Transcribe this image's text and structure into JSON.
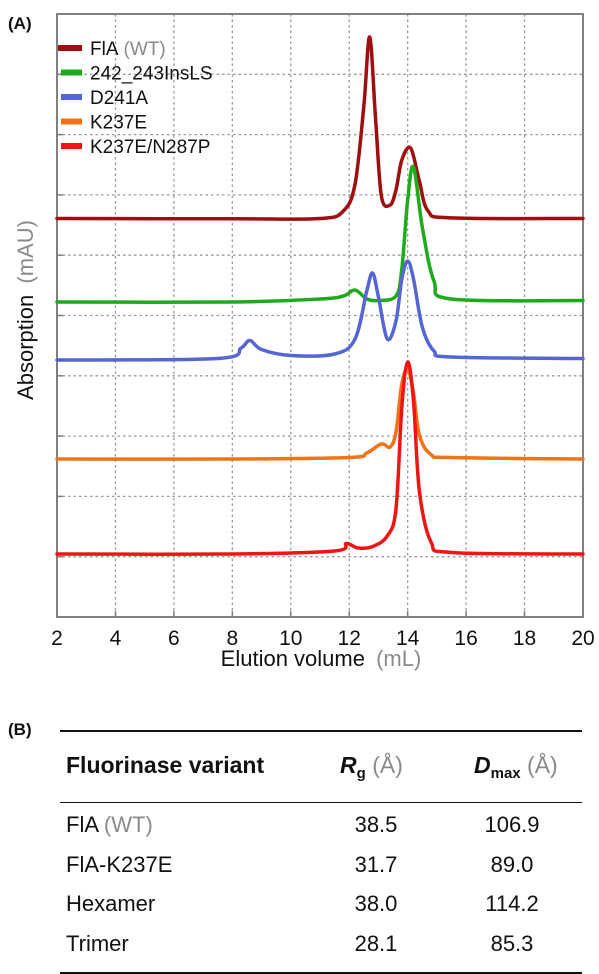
{
  "panel_a_label": "(A)",
  "panel_b_label": "(B)",
  "colors": {
    "FlA": "#a00f0f",
    "242_243InsLS": "#1cab1c",
    "D241A": "#5566d4",
    "K237E": "#f07319",
    "K237E/N287P": "#f01414",
    "axis": "#808080",
    "grid": "#9a9a9a",
    "unit_gray": "#8a8a8a"
  },
  "chart_data": {
    "type": "line",
    "xlabel": "Elution volume",
    "xlabel_unit": "(mL)",
    "ylabel": "Absorption",
    "ylabel_unit": "(mAU)",
    "xlim": [
      2,
      20
    ],
    "xticks": [
      "2",
      "4",
      "6",
      "8",
      "10",
      "12",
      "14",
      "16",
      "18",
      "20"
    ],
    "y_tick_labels": "none",
    "grid": "dotted",
    "legend_position": "top-left",
    "series": [
      {
        "name": "FlA",
        "name_suffix": "(WT)",
        "color": "#a00f0f",
        "x": [
          2,
          8,
          11,
          11.8,
          12.2,
          12.5,
          12.7,
          12.9,
          13.1,
          13.4,
          13.6,
          13.8,
          14.1,
          14.4,
          14.7,
          15.5,
          20
        ],
        "y": [
          0.25,
          0.24,
          0.25,
          0.5,
          1.4,
          4.0,
          6.3,
          3.6,
          1.0,
          0.7,
          1.2,
          2.2,
          2.6,
          1.5,
          0.5,
          0.27,
          0.25
        ]
      },
      {
        "name": "242_243InsLS",
        "color": "#1cab1c",
        "x": [
          2,
          8,
          11,
          11.8,
          12.2,
          12.6,
          13.0,
          13.6,
          13.8,
          14.0,
          14.2,
          14.5,
          14.9,
          15.5,
          20
        ],
        "y": [
          0.1,
          0.1,
          0.2,
          0.3,
          0.5,
          0.2,
          0.15,
          0.3,
          1.2,
          3.5,
          4.6,
          2.6,
          0.8,
          0.2,
          0.15
        ]
      },
      {
        "name": "D241A",
        "color": "#5566d4",
        "x": [
          2,
          7.5,
          8.3,
          8.6,
          9.0,
          10,
          11.5,
          12.2,
          12.6,
          12.8,
          13.0,
          13.3,
          13.6,
          13.8,
          14.0,
          14.2,
          14.5,
          14.9,
          15.5,
          20
        ],
        "y": [
          0.1,
          0.15,
          0.5,
          0.75,
          0.45,
          0.25,
          0.3,
          0.8,
          2.4,
          3.0,
          2.2,
          0.8,
          1.4,
          2.8,
          3.4,
          2.8,
          1.2,
          0.4,
          0.2,
          0.15
        ]
      },
      {
        "name": "K237E",
        "color": "#f07319",
        "x": [
          2,
          8,
          12,
          12.6,
          13.1,
          13.4,
          13.6,
          13.8,
          14.0,
          14.2,
          14.4,
          14.8,
          15.5,
          20
        ],
        "y": [
          0.1,
          0.1,
          0.15,
          0.3,
          0.6,
          0.5,
          1.0,
          2.6,
          3.1,
          2.3,
          0.9,
          0.25,
          0.15,
          0.1
        ]
      },
      {
        "name": "K237E/N287P",
        "color": "#f01414",
        "x": [
          2,
          8,
          11.5,
          11.9,
          12.3,
          12.8,
          13.3,
          13.6,
          13.8,
          14.0,
          14.2,
          14.4,
          14.8,
          15.5,
          20
        ],
        "y": [
          0.1,
          0.1,
          0.2,
          0.45,
          0.3,
          0.35,
          0.7,
          1.6,
          5.0,
          6.5,
          5.2,
          2.2,
          0.5,
          0.15,
          0.1
        ]
      }
    ]
  },
  "table": {
    "header": {
      "variant": "Fluorinase variant",
      "rg_symbol": "R",
      "rg_sub": "g",
      "rg_unit": "(Å)",
      "dmax_symbol": "D",
      "dmax_sub": "max",
      "dmax_unit": "(Å)"
    },
    "rows": [
      {
        "variant": "FlA",
        "suffix": "(WT)",
        "rg": "38.5",
        "dmax": "106.9"
      },
      {
        "variant": "FlA-K237E",
        "suffix": "",
        "rg": "31.7",
        "dmax": "89.0"
      },
      {
        "variant": "Hexamer",
        "suffix": "",
        "rg": "38.0",
        "dmax": "114.2"
      },
      {
        "variant": "Trimer",
        "suffix": "",
        "rg": "28.1",
        "dmax": "85.3"
      }
    ]
  }
}
